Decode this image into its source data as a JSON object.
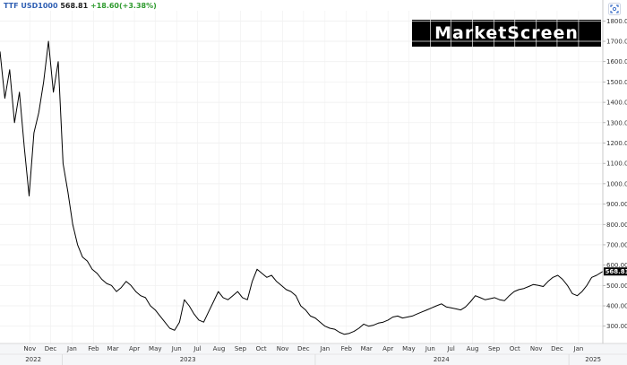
{
  "header": {
    "symbol": "TTF USD1000",
    "price": "568.81",
    "change": "+18.60(+3.38%)",
    "change_color": "#2e9a2e",
    "symbol_color": "#2f5fb3"
  },
  "logo": {
    "text": "MarketScreen"
  },
  "toolbar": {
    "expand_icon": "expand-icon"
  },
  "chart_data": {
    "type": "line",
    "title": "",
    "xlabel": "",
    "ylabel": "",
    "ylim": [
      215,
      1850
    ],
    "x_range": [
      "2022-10-03",
      "2025-02-19"
    ],
    "y_ticks": [
      "300.00",
      "400.00",
      "500.00",
      "600.00",
      "700.00",
      "800.00",
      "900.00",
      "1000.00",
      "1100.00",
      "1200.00",
      "1300.00",
      "1400.00",
      "1500.00",
      "1600.00",
      "1700.00",
      "1800.00"
    ],
    "x_month_labels": [
      "Nov",
      "Dec",
      "Jan",
      "Feb",
      "Mar",
      "Apr",
      "May",
      "Jun",
      "Jul",
      "Aug",
      "Sep",
      "Oct",
      "Nov",
      "Dec",
      "Jan",
      "Feb",
      "Mar",
      "Apr",
      "May",
      "Jun",
      "Jul",
      "Aug",
      "Sep",
      "Oct",
      "Nov",
      "Dec",
      "Jan"
    ],
    "x_year_labels": [
      "2022",
      "2023",
      "2024",
      "2025"
    ],
    "last_price_label": "568.81",
    "grid": true,
    "series": [
      {
        "color": "#000000",
        "x": [
          "2022-10-03",
          "2022-10-10",
          "2022-10-17",
          "2022-10-24",
          "2022-10-31",
          "2022-11-07",
          "2022-11-14",
          "2022-11-21",
          "2022-11-28",
          "2022-12-05",
          "2022-12-12",
          "2022-12-19",
          "2022-12-26",
          "2023-01-02",
          "2023-01-09",
          "2023-01-16",
          "2023-01-23",
          "2023-01-30",
          "2023-02-06",
          "2023-02-13",
          "2023-02-20",
          "2023-02-27",
          "2023-03-06",
          "2023-03-13",
          "2023-03-20",
          "2023-03-27",
          "2023-04-03",
          "2023-04-10",
          "2023-04-17",
          "2023-04-24",
          "2023-05-01",
          "2023-05-08",
          "2023-05-15",
          "2023-05-22",
          "2023-05-29",
          "2023-06-05",
          "2023-06-12",
          "2023-06-19",
          "2023-06-26",
          "2023-07-03",
          "2023-07-10",
          "2023-07-17",
          "2023-07-24",
          "2023-07-31",
          "2023-08-07",
          "2023-08-14",
          "2023-08-21",
          "2023-08-28",
          "2023-09-04",
          "2023-09-11",
          "2023-09-18",
          "2023-09-25",
          "2023-10-02",
          "2023-10-09",
          "2023-10-16",
          "2023-10-23",
          "2023-10-30",
          "2023-11-06",
          "2023-11-13",
          "2023-11-20",
          "2023-11-27",
          "2023-12-04",
          "2023-12-11",
          "2023-12-18",
          "2023-12-25",
          "2024-01-01",
          "2024-01-08",
          "2024-01-15",
          "2024-01-22",
          "2024-01-29",
          "2024-02-05",
          "2024-02-12",
          "2024-02-19",
          "2024-02-26",
          "2024-03-04",
          "2024-03-11",
          "2024-03-18",
          "2024-03-25",
          "2024-04-01",
          "2024-04-08",
          "2024-04-15",
          "2024-04-22",
          "2024-04-29",
          "2024-05-06",
          "2024-05-13",
          "2024-05-20",
          "2024-05-27",
          "2024-06-03",
          "2024-06-10",
          "2024-06-17",
          "2024-06-24",
          "2024-07-01",
          "2024-07-08",
          "2024-07-15",
          "2024-07-22",
          "2024-07-29",
          "2024-08-05",
          "2024-08-12",
          "2024-08-19",
          "2024-08-26",
          "2024-09-02",
          "2024-09-09",
          "2024-09-16",
          "2024-09-23",
          "2024-09-30",
          "2024-10-07",
          "2024-10-14",
          "2024-10-21",
          "2024-10-28",
          "2024-11-04",
          "2024-11-11",
          "2024-11-18",
          "2024-11-25",
          "2024-12-02",
          "2024-12-09",
          "2024-12-16",
          "2024-12-23",
          "2024-12-30",
          "2025-01-06",
          "2025-01-13",
          "2025-01-20",
          "2025-01-27",
          "2025-02-03",
          "2025-02-10",
          "2025-02-19"
        ],
        "values": [
          1650,
          1420,
          1560,
          1300,
          1450,
          1180,
          940,
          1250,
          1350,
          1500,
          1700,
          1450,
          1600,
          1100,
          960,
          800,
          700,
          640,
          620,
          580,
          560,
          530,
          510,
          500,
          470,
          490,
          520,
          500,
          470,
          450,
          440,
          400,
          380,
          350,
          320,
          290,
          280,
          320,
          430,
          400,
          360,
          330,
          320,
          370,
          420,
          470,
          440,
          430,
          450,
          470,
          440,
          430,
          520,
          580,
          560,
          540,
          550,
          520,
          500,
          480,
          470,
          450,
          400,
          380,
          350,
          340,
          320,
          300,
          290,
          285,
          270,
          260,
          265,
          275,
          290,
          310,
          300,
          305,
          315,
          320,
          330,
          345,
          350,
          340,
          345,
          350,
          360,
          370,
          380,
          390,
          400,
          410,
          395,
          390,
          385,
          380,
          395,
          420,
          450,
          440,
          430,
          435,
          440,
          430,
          425,
          450,
          470,
          480,
          485,
          495,
          505,
          500,
          495,
          520,
          540,
          550,
          530,
          500,
          460,
          450,
          470,
          500,
          540,
          550,
          568.81
        ]
      }
    ]
  }
}
